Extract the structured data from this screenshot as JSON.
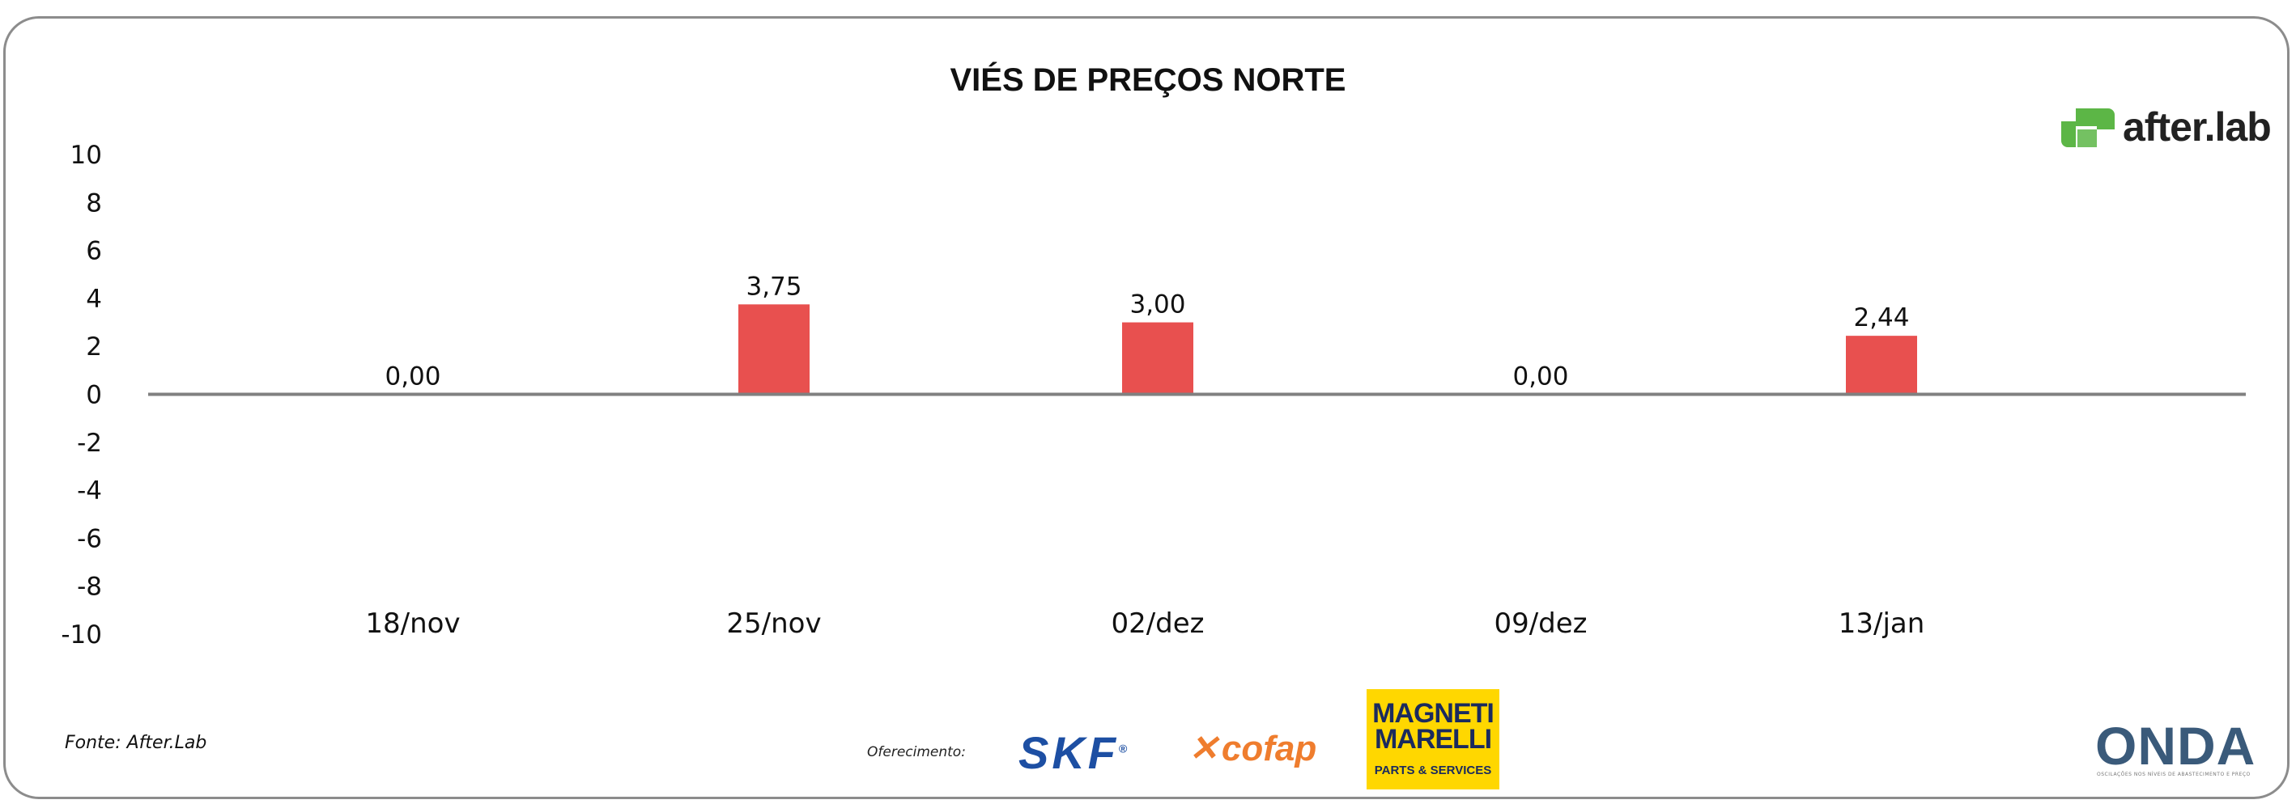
{
  "chart_data": {
    "type": "bar",
    "title": "VIÉS DE PREÇOS NORTE",
    "categories": [
      "18/nov",
      "25/nov",
      "02/dez",
      "09/dez",
      "13/jan"
    ],
    "values": [
      0.0,
      3.75,
      3.0,
      0.0,
      2.44
    ],
    "data_labels": [
      "0,00",
      "3,75",
      "3,00",
      "0,00",
      "2,44"
    ],
    "yticks": [
      10,
      8,
      6,
      4,
      2,
      0,
      -2,
      -4,
      -6,
      -8,
      -10
    ],
    "ylim": [
      -10,
      10
    ],
    "xlabel": "",
    "ylabel": "",
    "bar_color": "#e8504f",
    "zero_line_color": "#808080",
    "grid": false,
    "legend": "none"
  },
  "footer": {
    "source": "Fonte: After.Lab",
    "sponsor_label": "Oferecimento:"
  },
  "logos": {
    "afterlab": "after.lab",
    "skf": "SKF",
    "skf_reg": "®",
    "cofap": "cofap",
    "magneti_line1": "MAGNETI",
    "magneti_line2": "MARELLI",
    "magneti_line3": "PARTS & SERVICES",
    "onda": "ONDA",
    "onda_sub": "OSCILAÇÕES NOS NÍVEIS DE ABASTECIMENTO E PREÇO"
  },
  "colors": {
    "afterlab_green": "#5cb646",
    "skf_blue": "#1d4fa3",
    "cofap_orange": "#ef7d2e",
    "magneti_yellow": "#ffd700"
  }
}
